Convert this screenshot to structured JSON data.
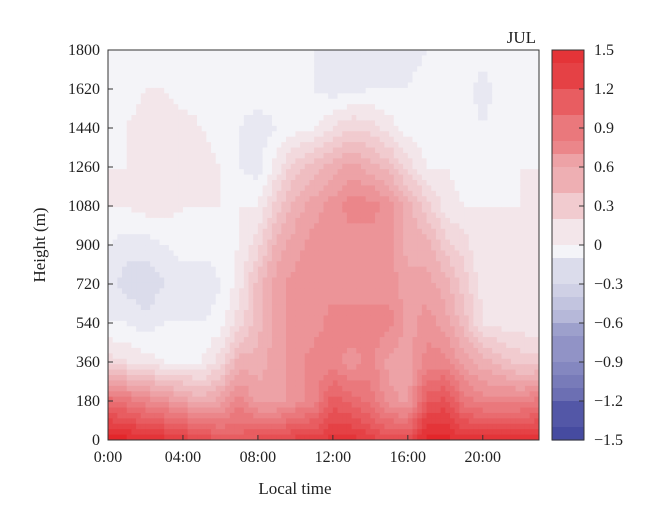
{
  "chart_data": {
    "type": "heatmap",
    "subtype": "filled-contour",
    "title": "JUL",
    "xlabel": "Local time",
    "ylabel": "Height (m)",
    "x_ticks": [
      "0:00",
      "04:00",
      "08:00",
      "12:00",
      "16:00",
      "20:00"
    ],
    "y_ticks": [
      "0",
      "180",
      "360",
      "540",
      "720",
      "900",
      "1080",
      "1260",
      "1440",
      "1620",
      "1800"
    ],
    "xlim": [
      0,
      23
    ],
    "ylim": [
      0,
      1800
    ],
    "x_hours": [
      0,
      1,
      2,
      3,
      4,
      5,
      6,
      7,
      8,
      9,
      10,
      11,
      12,
      13,
      14,
      15,
      16,
      17,
      18,
      19,
      20,
      21,
      22,
      23
    ],
    "heights_m": [
      0,
      180,
      360,
      540,
      720,
      900,
      1080,
      1260,
      1440,
      1620,
      1800
    ],
    "values": [
      [
        1.5,
        1.5,
        1.4,
        1.4,
        1.3,
        1.3,
        1.1,
        1.1,
        1.2,
        1.2,
        1.3,
        1.3,
        1.4,
        1.4,
        1.3,
        1.2,
        1.2,
        1.5,
        1.5,
        1.4,
        1.4,
        1.4,
        1.4,
        1.4
      ],
      [
        1.0,
        0.9,
        0.8,
        0.7,
        0.6,
        0.5,
        0.6,
        0.8,
        0.6,
        0.6,
        0.7,
        0.8,
        1.1,
        1.0,
        0.9,
        0.7,
        0.6,
        1.1,
        1.2,
        0.9,
        0.8,
        0.8,
        0.8,
        0.9
      ],
      [
        0.2,
        0.15,
        0.1,
        0.05,
        0.05,
        0.05,
        0.2,
        0.5,
        0.5,
        0.6,
        0.7,
        0.8,
        0.8,
        0.7,
        0.8,
        0.6,
        0.6,
        0.8,
        0.8,
        0.6,
        0.5,
        0.4,
        0.3,
        0.3
      ],
      [
        -0.05,
        -0.05,
        -0.1,
        -0.05,
        -0.05,
        -0.05,
        0.0,
        0.2,
        0.4,
        0.6,
        0.7,
        0.7,
        0.8,
        0.8,
        0.8,
        0.8,
        0.6,
        0.7,
        0.6,
        0.4,
        0.15,
        0.1,
        0.1,
        0.05
      ],
      [
        -0.1,
        -0.2,
        -0.25,
        -0.15,
        -0.1,
        -0.15,
        -0.05,
        0.1,
        0.4,
        0.6,
        0.7,
        0.7,
        0.7,
        0.7,
        0.7,
        0.7,
        0.6,
        0.6,
        0.5,
        0.3,
        0.1,
        0.05,
        0.05,
        0.05
      ],
      [
        -0.05,
        -0.1,
        -0.1,
        -0.05,
        0.0,
        0.0,
        0.0,
        0.05,
        0.2,
        0.5,
        0.6,
        0.7,
        0.7,
        0.7,
        0.7,
        0.7,
        0.5,
        0.5,
        0.3,
        0.2,
        0.05,
        0.05,
        0.05,
        0.05
      ],
      [
        0.05,
        0.05,
        0.1,
        0.1,
        0.05,
        0.05,
        0.05,
        0.05,
        0.05,
        0.3,
        0.5,
        0.6,
        0.7,
        0.8,
        0.8,
        0.7,
        0.5,
        0.3,
        0.1,
        0.05,
        0.05,
        0.05,
        0.05,
        0.05
      ],
      [
        0.05,
        0.05,
        0.15,
        0.15,
        0.1,
        0.1,
        0.05,
        -0.05,
        -0.1,
        0.1,
        0.3,
        0.4,
        0.5,
        0.6,
        0.5,
        0.4,
        0.2,
        0.05,
        0.05,
        0.0,
        -0.05,
        0.0,
        0.05,
        0.05
      ],
      [
        0.0,
        0.05,
        0.1,
        0.1,
        0.1,
        0.05,
        0.0,
        -0.05,
        -0.1,
        -0.05,
        0.0,
        0.05,
        0.15,
        0.25,
        0.2,
        0.1,
        0.0,
        0.0,
        0.0,
        0.0,
        -0.05,
        0.0,
        0.0,
        0.0
      ],
      [
        0.0,
        0.0,
        0.05,
        0.05,
        0.0,
        0.0,
        0.0,
        0.0,
        0.0,
        0.0,
        0.0,
        -0.05,
        -0.1,
        -0.1,
        -0.05,
        -0.05,
        -0.05,
        0.0,
        0.0,
        0.0,
        -0.1,
        0.0,
        0.0,
        0.0
      ],
      [
        0.0,
        0.0,
        0.0,
        0.0,
        0.0,
        0.05,
        0.0,
        0.0,
        0.0,
        0.0,
        0.0,
        -0.05,
        -0.1,
        -0.05,
        -0.05,
        -0.1,
        -0.1,
        -0.05,
        0.0,
        0.0,
        0.0,
        0.0,
        0.0,
        0.0
      ]
    ],
    "colorbar": {
      "min": -1.5,
      "max": 1.5,
      "tick_values": [
        1.5,
        1.2,
        0.9,
        0.6,
        0.3,
        0,
        -0.3,
        -0.6,
        -0.9,
        -1.2,
        -1.5
      ],
      "tick_labels": [
        "1.5",
        "1.2",
        "0.9",
        "0.6",
        "0.3",
        "0",
        "−0.3",
        "−0.6",
        "−0.9",
        "−1.2",
        "−1.5"
      ],
      "low_color": "#3a3f9a",
      "mid_color": "#f4f4f8",
      "high_color": "#e3262a"
    },
    "grid": false
  }
}
